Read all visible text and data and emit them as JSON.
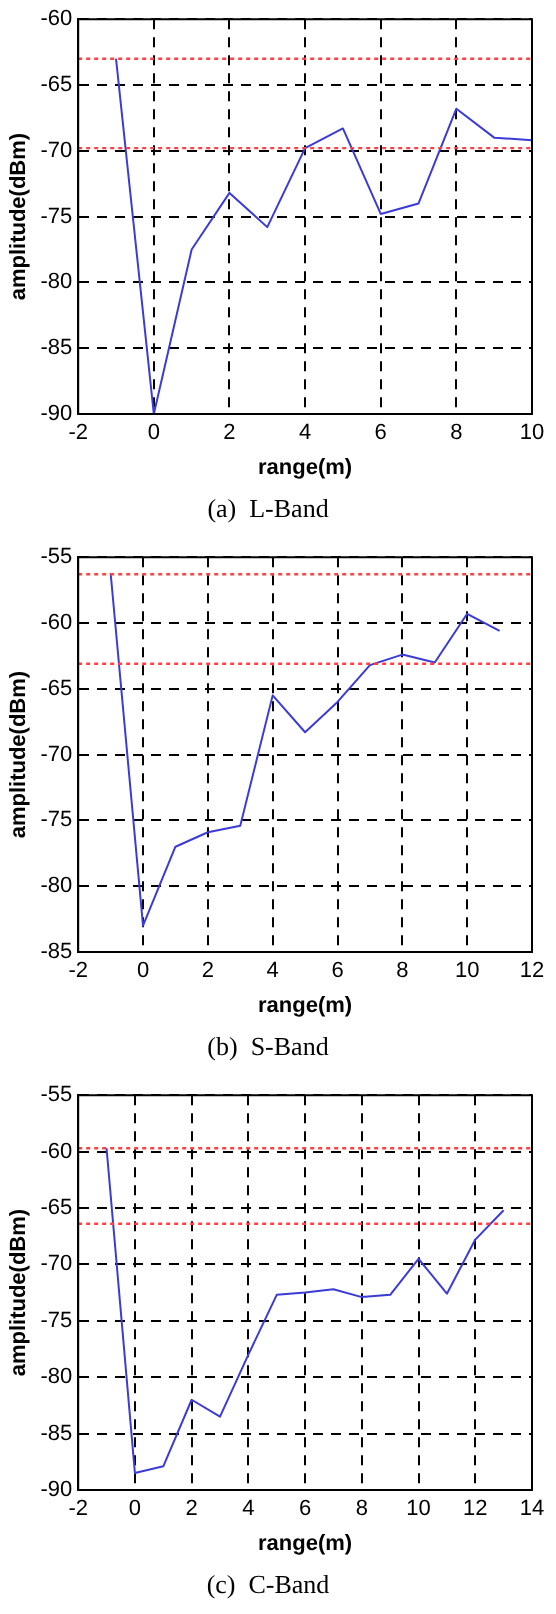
{
  "chart_data": [
    {
      "type": "line",
      "title": "(a)  L-Band",
      "xlabel": "range(m)",
      "ylabel": "amplitude(dBm)",
      "x": [
        -1,
        0,
        1,
        2,
        3,
        4,
        5,
        6,
        7,
        8,
        9,
        10
      ],
      "series": [
        {
          "color": "#3b3bd6",
          "values": [
            -63,
            -90,
            -77.5,
            -73.2,
            -75.8,
            -69.8,
            -68.3,
            -74.8,
            -74,
            -66.8,
            -69,
            -69.2
          ]
        }
      ],
      "xlim": [
        -2,
        10
      ],
      "xticks": [
        -2,
        0,
        2,
        4,
        6,
        8,
        10
      ],
      "ylim": [
        -90,
        -60
      ],
      "yticks": [
        -90,
        -85,
        -80,
        -75,
        -70,
        -65,
        -60
      ],
      "grid": true,
      "marker": "none",
      "line_style": "solid",
      "legend": false,
      "ref_lines": [
        {
          "axis": "y",
          "value": -63,
          "color": "#ff4040",
          "line_style": "dotted"
        },
        {
          "axis": "y",
          "value": -69.8,
          "color": "#ff4040",
          "line_style": "dotted"
        }
      ]
    },
    {
      "type": "line",
      "title": "(b)  S-Band",
      "xlabel": "range(m)",
      "ylabel": "amplitude(dBm)",
      "x": [
        -1,
        0,
        1,
        2,
        3,
        4,
        5,
        6,
        7,
        8,
        9,
        10,
        11
      ],
      "series": [
        {
          "color": "#3b3bd6",
          "values": [
            -56.2,
            -83,
            -77,
            -75.9,
            -75.4,
            -65.5,
            -68.3,
            -66,
            -63.2,
            -62.4,
            -63,
            -59.3,
            -60.6
          ]
        }
      ],
      "xlim": [
        -2,
        12
      ],
      "xticks": [
        -2,
        0,
        2,
        4,
        6,
        8,
        10,
        12
      ],
      "ylim": [
        -85,
        -55
      ],
      "yticks": [
        -85,
        -80,
        -75,
        -70,
        -65,
        -60,
        -55
      ],
      "grid": true,
      "marker": "none",
      "line_style": "solid",
      "legend": false,
      "ref_lines": [
        {
          "axis": "y",
          "value": -56.3,
          "color": "#ff4040",
          "line_style": "dotted"
        },
        {
          "axis": "y",
          "value": -63.1,
          "color": "#ff4040",
          "line_style": "dotted"
        }
      ]
    },
    {
      "type": "line",
      "title": "(c)  C-Band",
      "xlabel": "range(m)",
      "ylabel": "amplitude(dBm)",
      "x": [
        -1,
        0,
        1,
        2,
        3,
        4,
        5,
        6,
        7,
        8,
        9,
        10,
        11,
        12,
        13
      ],
      "series": [
        {
          "color": "#3b3bd6",
          "values": [
            -59.7,
            -88.5,
            -87.9,
            -82,
            -83.5,
            -78,
            -72.7,
            -72.5,
            -72.2,
            -72.9,
            -72.7,
            -69.5,
            -72.6,
            -67.8,
            -65.2
          ]
        }
      ],
      "xlim": [
        -2,
        14
      ],
      "xticks": [
        -2,
        0,
        2,
        4,
        6,
        8,
        10,
        12,
        14
      ],
      "ylim": [
        -90,
        -55
      ],
      "yticks": [
        -90,
        -85,
        -80,
        -75,
        -70,
        -65,
        -60,
        -55
      ],
      "grid": true,
      "marker": "none",
      "line_style": "solid",
      "legend": false,
      "ref_lines": [
        {
          "axis": "y",
          "value": -59.7,
          "color": "#ff4040",
          "line_style": "dotted"
        },
        {
          "axis": "y",
          "value": -66.4,
          "color": "#ff4040",
          "line_style": "dotted"
        }
      ]
    }
  ]
}
